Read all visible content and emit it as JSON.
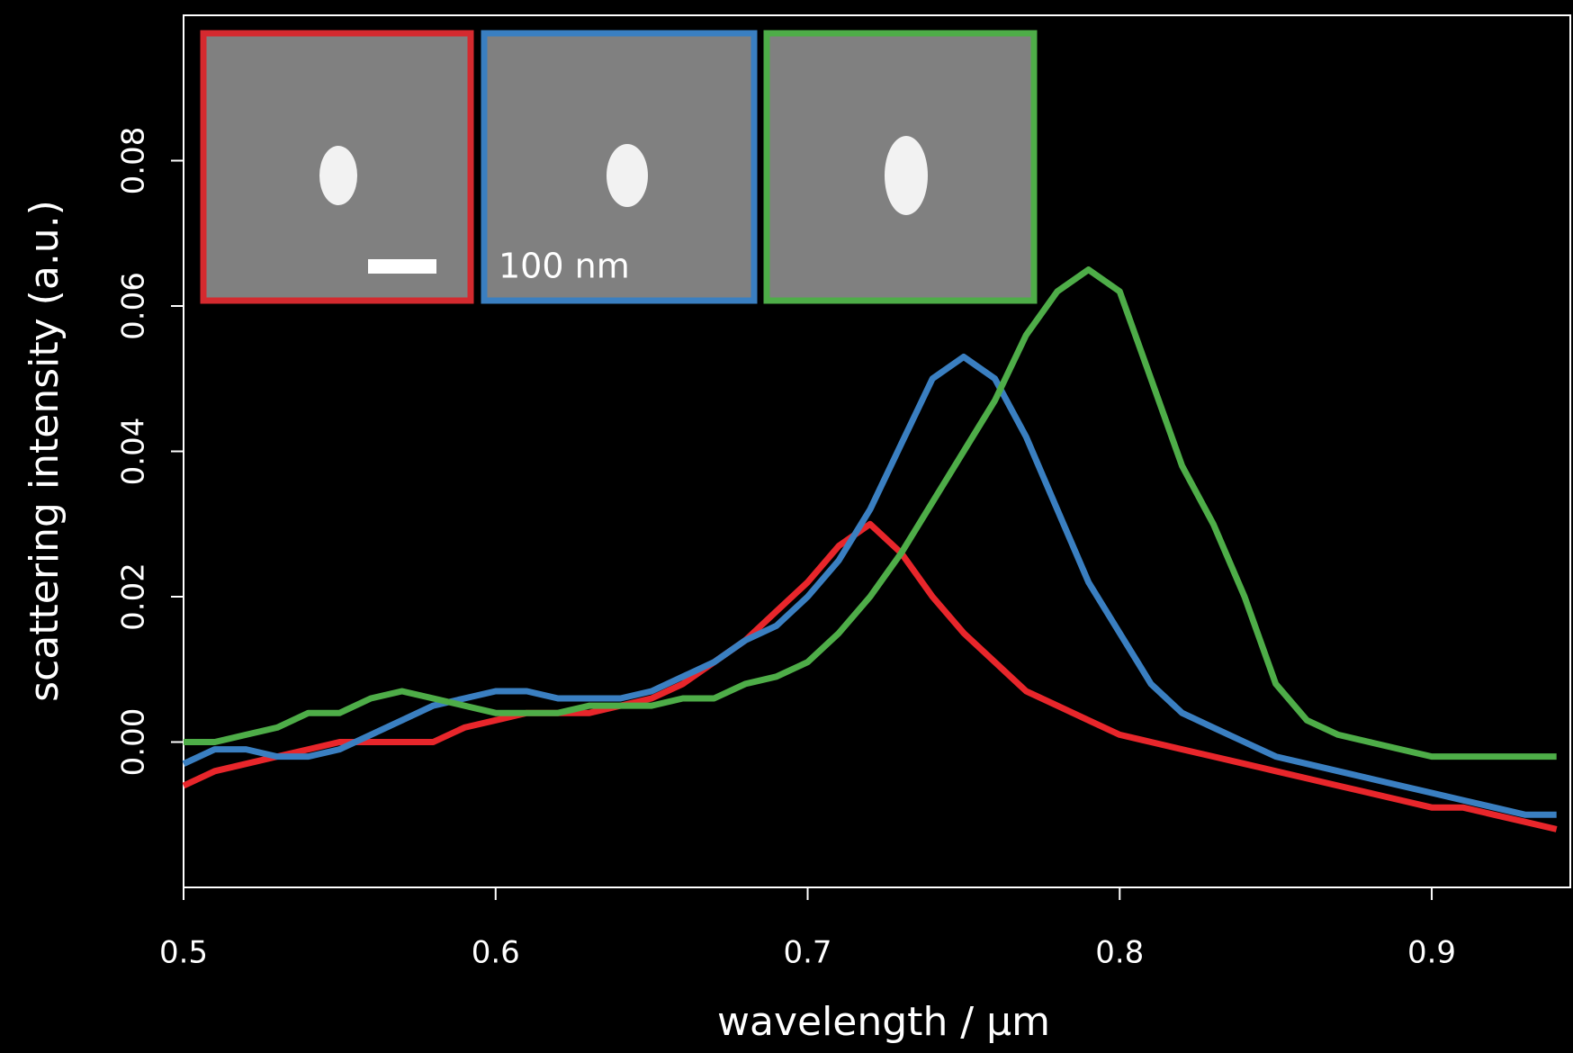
{
  "chart_data": {
    "type": "line",
    "x_label": "wavelength / µm",
    "y_label": "scattering intensity (a.u.)",
    "annotations": [
      "100 nm"
    ],
    "x": [
      0.5,
      0.51,
      0.52,
      0.53,
      0.54,
      0.55,
      0.56,
      0.57,
      0.58,
      0.59,
      0.6,
      0.61,
      0.62,
      0.63,
      0.64,
      0.65,
      0.66,
      0.67,
      0.68,
      0.69,
      0.7,
      0.71,
      0.72,
      0.73,
      0.74,
      0.75,
      0.76,
      0.77,
      0.78,
      0.79,
      0.8,
      0.81,
      0.82,
      0.83,
      0.84,
      0.85,
      0.86,
      0.87,
      0.88,
      0.89,
      0.9,
      0.91,
      0.92,
      0.93,
      0.94
    ],
    "series": [
      {
        "color": "#e8262b",
        "values": [
          -0.006,
          -0.004,
          -0.003,
          -0.002,
          -0.001,
          0.0,
          0.0,
          0.0,
          0.0,
          0.002,
          0.003,
          0.004,
          0.004,
          0.004,
          0.005,
          0.006,
          0.008,
          0.011,
          0.014,
          0.018,
          0.022,
          0.027,
          0.03,
          0.026,
          0.02,
          0.015,
          0.011,
          0.007,
          0.005,
          0.003,
          0.001,
          0.0,
          -0.001,
          -0.002,
          -0.003,
          -0.004,
          -0.005,
          -0.006,
          -0.007,
          -0.008,
          -0.009,
          -0.009,
          -0.01,
          -0.011,
          -0.012
        ]
      },
      {
        "color": "#3a7fc1",
        "values": [
          -0.003,
          -0.001,
          -0.001,
          -0.002,
          -0.002,
          -0.001,
          0.001,
          0.003,
          0.005,
          0.006,
          0.007,
          0.007,
          0.006,
          0.006,
          0.006,
          0.007,
          0.009,
          0.011,
          0.014,
          0.016,
          0.02,
          0.025,
          0.032,
          0.041,
          0.05,
          0.053,
          0.05,
          0.042,
          0.032,
          0.022,
          0.015,
          0.008,
          0.004,
          0.002,
          0.0,
          -0.002,
          -0.003,
          -0.004,
          -0.005,
          -0.006,
          -0.007,
          -0.008,
          -0.009,
          -0.01,
          -0.01
        ]
      },
      {
        "color": "#4ead48",
        "values": [
          0.0,
          0.0,
          0.001,
          0.002,
          0.004,
          0.004,
          0.006,
          0.007,
          0.006,
          0.005,
          0.004,
          0.004,
          0.004,
          0.005,
          0.005,
          0.005,
          0.006,
          0.006,
          0.008,
          0.009,
          0.011,
          0.015,
          0.02,
          0.026,
          0.033,
          0.04,
          0.047,
          0.056,
          0.062,
          0.065,
          0.062,
          0.05,
          0.038,
          0.03,
          0.02,
          0.008,
          0.003,
          0.001,
          0.0,
          -0.001,
          -0.002,
          -0.002,
          -0.002,
          -0.002,
          -0.002
        ]
      }
    ],
    "xlim": [
      0.5,
      0.9444
    ],
    "ylim": [
      -0.02,
      0.1
    ],
    "xticks": [
      0.5,
      0.6,
      0.7,
      0.8,
      0.9
    ],
    "yticks": [
      {
        "value": 0,
        "label": "0.00"
      },
      {
        "value": 0.02,
        "label": "0.02"
      },
      {
        "value": 0.04,
        "label": "0.04"
      },
      {
        "value": 0.06,
        "label": "0.06"
      },
      {
        "value": 0.08,
        "label": "0.08"
      }
    ]
  }
}
